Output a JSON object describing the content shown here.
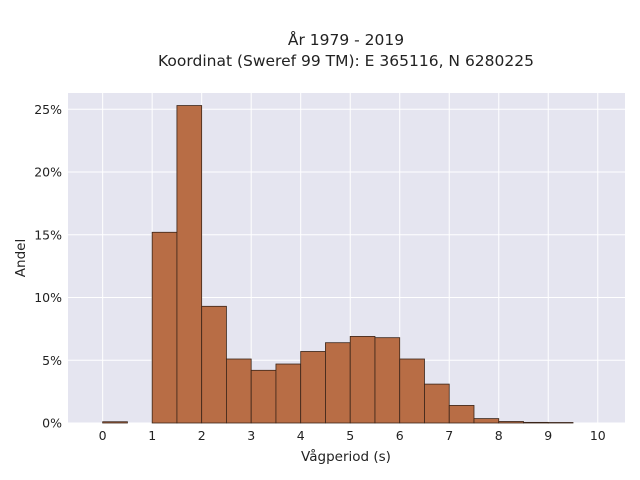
{
  "chart_data": {
    "type": "bar",
    "title_lines": [
      "År 1979 - 2019",
      "Koordinat (Sweref 99 TM): E 365116, N 6280225"
    ],
    "xlabel": "Vågperiod (s)",
    "ylabel": "Andel",
    "bin_width": 0.5,
    "bin_starts": [
      0,
      0.5,
      1.0,
      1.5,
      2.0,
      2.5,
      3.0,
      3.5,
      4.0,
      4.5,
      5.0,
      5.5,
      6.0,
      6.5,
      7.0,
      7.5,
      8.0,
      8.5,
      9.0,
      9.5
    ],
    "values": [
      0.1,
      0.0,
      15.2,
      25.3,
      9.3,
      5.1,
      4.2,
      4.7,
      5.7,
      6.4,
      6.9,
      6.8,
      5.1,
      3.1,
      1.4,
      0.35,
      0.12,
      0.05,
      0.04,
      0.0
    ],
    "xlim": [
      -0.7,
      10.55
    ],
    "ylim": [
      0,
      26.3
    ],
    "xticks": [
      0,
      1,
      2,
      3,
      4,
      5,
      6,
      7,
      8,
      9,
      10
    ],
    "xtick_labels": [
      "0",
      "1",
      "2",
      "3",
      "4",
      "5",
      "6",
      "7",
      "8",
      "9",
      "10"
    ],
    "yticks": [
      0,
      5,
      10,
      15,
      20,
      25
    ],
    "ytick_labels": [
      "0%",
      "5%",
      "10%",
      "15%",
      "20%",
      "25%"
    ],
    "grid": true,
    "colors": {
      "bar_fill": "#b86d45",
      "bar_stroke": "#3a2418",
      "plot_background": "#e5e5f0",
      "grid": "#ffffff"
    }
  }
}
